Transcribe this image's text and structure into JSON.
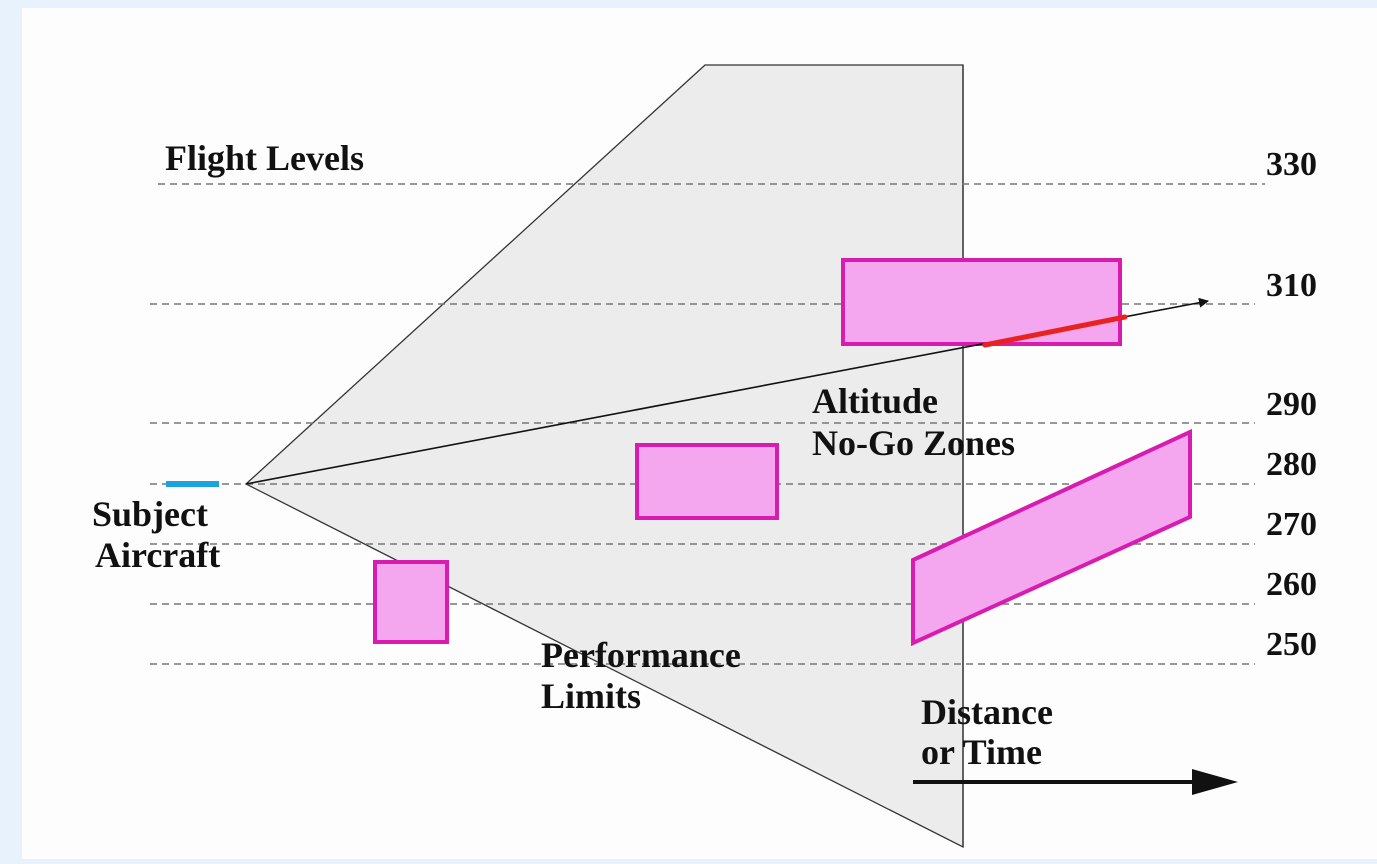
{
  "labels": {
    "flight_levels": "Flight Levels",
    "subject_line1": "Subject",
    "subject_line2": "Aircraft",
    "altitude_line1": "Altitude",
    "altitude_line2": "No-Go Zones",
    "performance_line1": "Performance",
    "performance_line2": "Limits",
    "distance_line1": "Distance",
    "distance_line2": "or Time"
  },
  "flight_levels": [
    "330",
    "310",
    "290",
    "280",
    "270",
    "260",
    "250"
  ],
  "colors": {
    "background": "#e8f2fc",
    "panel": "#fdfdfd",
    "envelope_fill": "#ececec",
    "zone_fill": "#f4a6ee",
    "zone_stroke": "#d81cb0",
    "conflict_segment": "#e8221e",
    "subject_marker": "#1ba3e0",
    "gridline": "#777777"
  }
}
